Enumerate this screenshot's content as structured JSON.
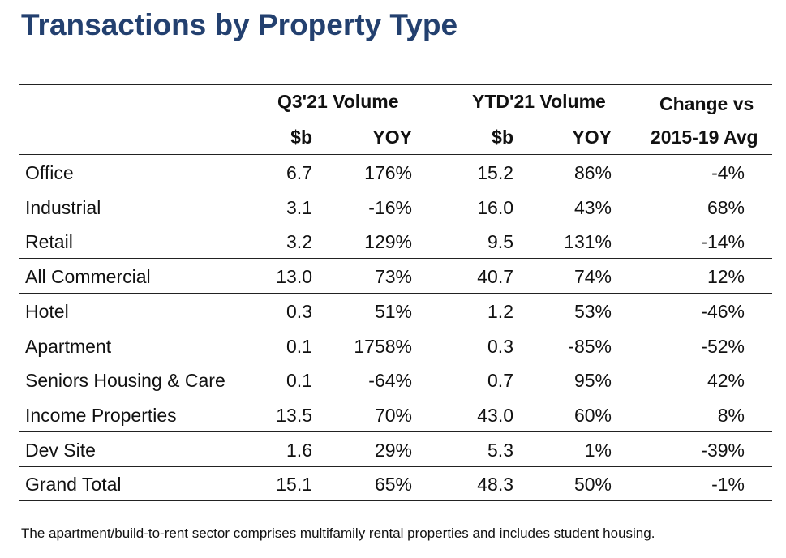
{
  "title": "Transactions by Property Type",
  "header": {
    "group1": "Q3'21 Volume",
    "group2": "YTD'21 Volume",
    "group3_line1": "Change vs",
    "group3_line2": "2015-19 Avg",
    "sub1": "$b",
    "sub2": "YOY",
    "sub3": "$b",
    "sub4": "YOY"
  },
  "rows": [
    {
      "label": "Office",
      "q3_vol": "6.7",
      "q3_yoy": "176%",
      "ytd_vol": "15.2",
      "ytd_yoy": "86%",
      "vs_avg": "-4%"
    },
    {
      "label": "Industrial",
      "q3_vol": "3.1",
      "q3_yoy": "-16%",
      "ytd_vol": "16.0",
      "ytd_yoy": "43%",
      "vs_avg": "68%"
    },
    {
      "label": "Retail",
      "q3_vol": "3.2",
      "q3_yoy": "129%",
      "ytd_vol": "9.5",
      "ytd_yoy": "131%",
      "vs_avg": "-14%"
    },
    {
      "label": "All Commercial",
      "q3_vol": "13.0",
      "q3_yoy": "73%",
      "ytd_vol": "40.7",
      "ytd_yoy": "74%",
      "vs_avg": "12%"
    },
    {
      "label": "Hotel",
      "q3_vol": "0.3",
      "q3_yoy": "51%",
      "ytd_vol": "1.2",
      "ytd_yoy": "53%",
      "vs_avg": "-46%"
    },
    {
      "label": "Apartment",
      "q3_vol": "0.1",
      "q3_yoy": "1758%",
      "ytd_vol": "0.3",
      "ytd_yoy": "-85%",
      "vs_avg": "-52%"
    },
    {
      "label": "Seniors Housing & Care",
      "q3_vol": "0.1",
      "q3_yoy": "-64%",
      "ytd_vol": "0.7",
      "ytd_yoy": "95%",
      "vs_avg": "42%"
    },
    {
      "label": "Income Properties",
      "q3_vol": "13.5",
      "q3_yoy": "70%",
      "ytd_vol": "43.0",
      "ytd_yoy": "60%",
      "vs_avg": "8%"
    },
    {
      "label": "Dev Site",
      "q3_vol": "1.6",
      "q3_yoy": "29%",
      "ytd_vol": "5.3",
      "ytd_yoy": "1%",
      "vs_avg": "-39%"
    },
    {
      "label": "Grand Total",
      "q3_vol": "15.1",
      "q3_yoy": "65%",
      "ytd_vol": "48.3",
      "ytd_yoy": "50%",
      "vs_avg": "-1%"
    }
  ],
  "footnote": "The apartment/build-to-rent sector comprises multifamily rental properties and includes student housing."
}
